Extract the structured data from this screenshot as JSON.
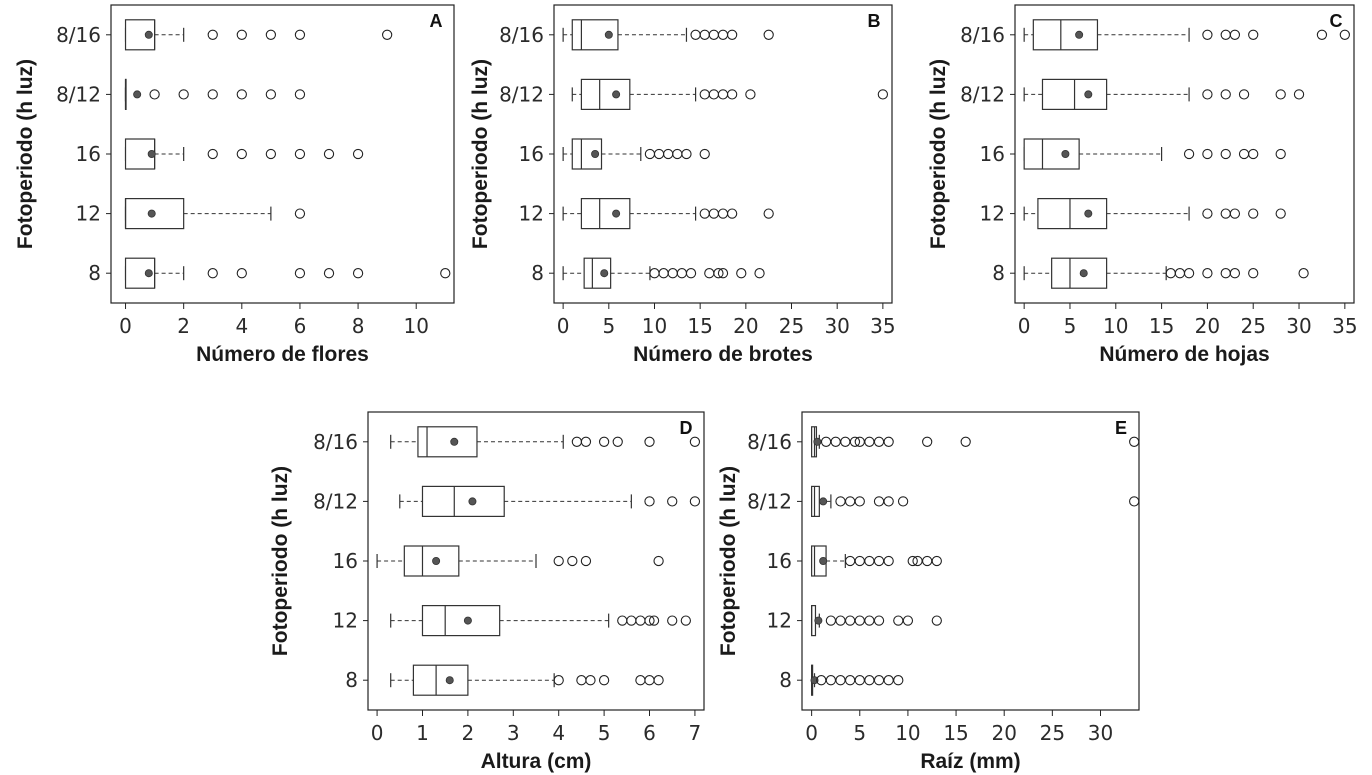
{
  "chart_data": [
    {
      "panel": "A",
      "type": "box",
      "xlabel": "Número de flores",
      "ylabel": "Fotoperiodo  (h luz)",
      "categories": [
        "8/16",
        "8/12",
        "16",
        "12",
        "8"
      ],
      "xlim": [
        -0.5,
        11.3
      ],
      "xticks": [
        0,
        2,
        4,
        6,
        8,
        10
      ],
      "boxes": [
        {
          "category": "8/16",
          "whisker_low": 0,
          "q1": 0,
          "median": 1,
          "q3": 1,
          "whisker_high": 2,
          "mean": 0.8,
          "outliers": [
            3,
            4,
            5,
            6,
            9
          ]
        },
        {
          "category": "8/12",
          "whisker_low": 0,
          "q1": 0,
          "median": 0,
          "q3": 0,
          "whisker_high": 0,
          "mean": 0.4,
          "outliers": [
            1,
            2,
            3,
            4,
            5,
            6
          ]
        },
        {
          "category": "16",
          "whisker_low": 0,
          "q1": 0,
          "median": 1,
          "q3": 1,
          "whisker_high": 2,
          "mean": 0.9,
          "outliers": [
            3,
            4,
            5,
            6,
            7,
            8
          ]
        },
        {
          "category": "12",
          "whisker_low": 0,
          "q1": 0,
          "median": 0,
          "q3": 2,
          "whisker_high": 5,
          "mean": 0.9,
          "outliers": [
            6
          ]
        },
        {
          "category": "8",
          "whisker_low": 0,
          "q1": 0,
          "median": 1,
          "q3": 1,
          "whisker_high": 2,
          "mean": 0.8,
          "outliers": [
            3,
            4,
            6,
            7,
            8,
            11
          ]
        }
      ]
    },
    {
      "panel": "B",
      "type": "box",
      "xlabel": "Número de brotes",
      "ylabel": "Fotoperiodo  (h luz)",
      "categories": [
        "8/16",
        "8/12",
        "16",
        "12",
        "8"
      ],
      "xlim": [
        -1,
        36
      ],
      "xticks": [
        0,
        5,
        10,
        15,
        20,
        25,
        30,
        35
      ],
      "boxes": [
        {
          "category": "8/16",
          "whisker_low": 0,
          "q1": 1,
          "median": 2,
          "q3": 6,
          "whisker_high": 13.5,
          "mean": 5,
          "outliers": [
            14.5,
            15.5,
            16.5,
            17.5,
            18.5,
            22.5
          ]
        },
        {
          "category": "8/12",
          "whisker_low": 1,
          "q1": 2,
          "median": 4,
          "q3": 7.3,
          "whisker_high": 14.5,
          "mean": 5.8,
          "outliers": [
            15.5,
            16.5,
            17.5,
            18.5,
            20.5,
            35
          ]
        },
        {
          "category": "16",
          "whisker_low": 0,
          "q1": 1,
          "median": 2,
          "q3": 4.2,
          "whisker_high": 8.5,
          "mean": 3.5,
          "outliers": [
            9.5,
            10.5,
            11.5,
            12.5,
            13.5,
            15.5
          ]
        },
        {
          "category": "12",
          "whisker_low": 0,
          "q1": 2,
          "median": 4,
          "q3": 7.3,
          "whisker_high": 14.5,
          "mean": 5.8,
          "outliers": [
            15.5,
            16.5,
            17.5,
            18.5,
            22.5
          ]
        },
        {
          "category": "8",
          "whisker_low": 0,
          "q1": 2.3,
          "median": 3.2,
          "q3": 5.2,
          "whisker_high": 9.5,
          "mean": 4.5,
          "outliers": [
            10,
            11,
            12,
            13,
            14,
            16,
            17,
            17.5,
            19.5,
            21.5
          ]
        }
      ]
    },
    {
      "panel": "C",
      "type": "box",
      "xlabel": "Número de hojas",
      "ylabel": "Fotoperiodo  (h luz)",
      "categories": [
        "8/16",
        "8/12",
        "16",
        "12",
        "8"
      ],
      "xlim": [
        -1,
        36
      ],
      "xticks": [
        0,
        5,
        10,
        15,
        20,
        25,
        30,
        35
      ],
      "boxes": [
        {
          "category": "8/16",
          "whisker_low": 0,
          "q1": 1,
          "median": 4,
          "q3": 8,
          "whisker_high": 18,
          "mean": 6,
          "outliers": [
            20,
            22,
            23,
            25,
            32.5,
            35
          ]
        },
        {
          "category": "8/12",
          "whisker_low": 0,
          "q1": 2,
          "median": 5.5,
          "q3": 9,
          "whisker_high": 18,
          "mean": 7,
          "outliers": [
            20,
            22,
            24,
            28,
            30
          ]
        },
        {
          "category": "16",
          "whisker_low": 0,
          "q1": 0,
          "median": 2,
          "q3": 6,
          "whisker_high": 15,
          "mean": 4.5,
          "outliers": [
            18,
            20,
            22,
            24,
            25,
            28
          ]
        },
        {
          "category": "12",
          "whisker_low": 0,
          "q1": 1.5,
          "median": 5,
          "q3": 9,
          "whisker_high": 18,
          "mean": 7,
          "outliers": [
            20,
            22,
            23,
            25,
            28
          ]
        },
        {
          "category": "8",
          "whisker_low": 0,
          "q1": 3,
          "median": 5,
          "q3": 9,
          "whisker_high": 15.5,
          "mean": 6.5,
          "outliers": [
            16,
            17,
            18,
            20,
            22,
            23,
            25,
            30.5
          ]
        }
      ]
    },
    {
      "panel": "D",
      "type": "box",
      "xlabel": "Altura (cm)",
      "ylabel": "Fotoperiodo  (h luz)",
      "categories": [
        "8/16",
        "8/12",
        "16",
        "12",
        "8"
      ],
      "xlim": [
        -0.2,
        7.2
      ],
      "xticks": [
        0,
        1,
        2,
        3,
        4,
        5,
        6,
        7
      ],
      "boxes": [
        {
          "category": "8/16",
          "whisker_low": 0.3,
          "q1": 0.9,
          "median": 1.1,
          "q3": 2.2,
          "whisker_high": 4.1,
          "mean": 1.7,
          "outliers": [
            4.4,
            4.6,
            5.0,
            5.3,
            6.0,
            7.0
          ]
        },
        {
          "category": "8/12",
          "whisker_low": 0.5,
          "q1": 1.0,
          "median": 1.7,
          "q3": 2.8,
          "whisker_high": 5.6,
          "mean": 2.1,
          "outliers": [
            6.0,
            6.5,
            7.0
          ]
        },
        {
          "category": "16",
          "whisker_low": 0,
          "q1": 0.6,
          "median": 1.0,
          "q3": 1.8,
          "whisker_high": 3.5,
          "mean": 1.3,
          "outliers": [
            4.0,
            4.3,
            4.6,
            6.2
          ]
        },
        {
          "category": "12",
          "whisker_low": 0.3,
          "q1": 1.0,
          "median": 1.5,
          "q3": 2.7,
          "whisker_high": 5.1,
          "mean": 2.0,
          "outliers": [
            5.4,
            5.6,
            5.8,
            6.0,
            6.1,
            6.5,
            6.8
          ]
        },
        {
          "category": "8",
          "whisker_low": 0.3,
          "q1": 0.8,
          "median": 1.3,
          "q3": 2.0,
          "whisker_high": 3.9,
          "mean": 1.6,
          "outliers": [
            4.0,
            4.5,
            4.7,
            5.0,
            5.8,
            6.0,
            6.2
          ]
        }
      ]
    },
    {
      "panel": "E",
      "type": "box",
      "xlabel": "Raíz (mm)",
      "ylabel": "Fotoperiodo  (h luz)",
      "categories": [
        "8/16",
        "8/12",
        "16",
        "12",
        "8"
      ],
      "xlim": [
        -1,
        34
      ],
      "xticks": [
        0,
        5,
        10,
        15,
        20,
        25,
        30
      ],
      "boxes": [
        {
          "category": "8/16",
          "whisker_low": 0,
          "q1": 0,
          "median": 0.3,
          "q3": 0.5,
          "whisker_high": 0.8,
          "mean": 0.6,
          "outliers": [
            1.5,
            2.5,
            3.5,
            4.5,
            5.0,
            6.0,
            7.0,
            8.0,
            12.0,
            16.0,
            33.5
          ]
        },
        {
          "category": "8/12",
          "whisker_low": 0,
          "q1": 0,
          "median": 0.3,
          "q3": 0.8,
          "whisker_high": 2.0,
          "mean": 1.2,
          "outliers": [
            3.0,
            4.0,
            5.0,
            7.0,
            8.0,
            9.5,
            33.5
          ]
        },
        {
          "category": "16",
          "whisker_low": 0,
          "q1": 0,
          "median": 0.3,
          "q3": 1.5,
          "whisker_high": 3.5,
          "mean": 1.2,
          "outliers": [
            4.0,
            5.0,
            6.0,
            7.0,
            8.0,
            10.5,
            11.0,
            12.0,
            13.0
          ]
        },
        {
          "category": "12",
          "whisker_low": 0,
          "q1": 0,
          "median": 0,
          "q3": 0.4,
          "whisker_high": 0.8,
          "mean": 0.7,
          "outliers": [
            2.0,
            3.0,
            4.0,
            5.0,
            6.0,
            7.0,
            9.0,
            10.0,
            13.0
          ]
        },
        {
          "category": "8",
          "whisker_low": 0,
          "q1": 0,
          "median": 0,
          "q3": 0.1,
          "whisker_high": 0.3,
          "mean": 0.3,
          "outliers": [
            1.0,
            2.0,
            3.0,
            4.0,
            5.0,
            6.0,
            7.0,
            8.0,
            9.0
          ]
        }
      ]
    }
  ]
}
